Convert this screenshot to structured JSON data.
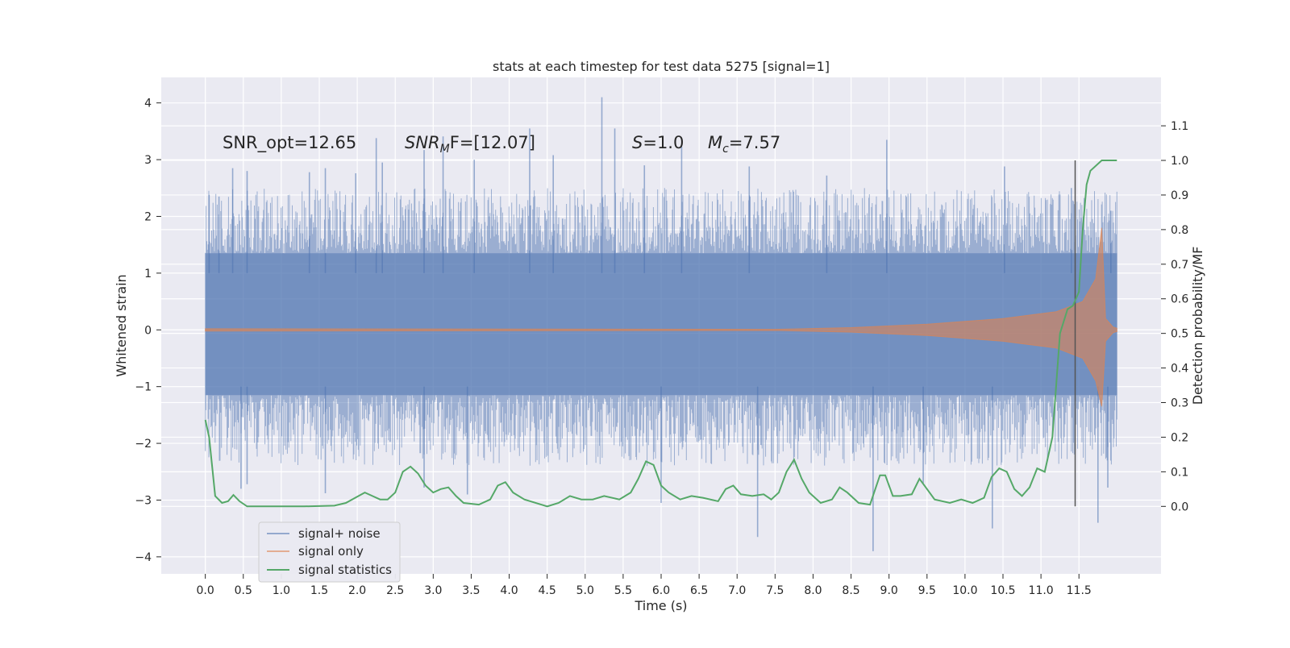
{
  "chart_data": {
    "type": "line",
    "title": "stats at each timestep for test data 5275 [signal=1]",
    "xlabel": "Time (s)",
    "ylabel_left": "Whitened strain",
    "ylabel_right": "Detection probability/MF",
    "xlim": [
      -0.58,
      12.58
    ],
    "ylim_left": [
      -4.3,
      4.45
    ],
    "ylim_right": [
      -0.195,
      1.24
    ],
    "x_ticks": [
      "0.0",
      "0.5",
      "1.0",
      "1.5",
      "2.0",
      "2.5",
      "3.0",
      "3.5",
      "4.0",
      "4.5",
      "5.0",
      "5.5",
      "6.0",
      "6.5",
      "7.0",
      "7.5",
      "8.0",
      "8.5",
      "9.0",
      "9.5",
      "10.0",
      "10.5",
      "11.0",
      "11.5"
    ],
    "y_ticks_left": [
      "4",
      "3",
      "2",
      "1",
      "0",
      "−1",
      "−2",
      "−3",
      "−4"
    ],
    "y_ticks_right": [
      "1.1",
      "1.0",
      "0.9",
      "0.8",
      "0.7",
      "0.6",
      "0.5",
      "0.4",
      "0.3",
      "0.2",
      "0.1",
      "0.0"
    ],
    "grid": true,
    "legend_position": "lower-left",
    "annotations": {
      "snr_opt": "SNR_opt=12.65",
      "snr_mf_main": "SNR",
      "snr_mf_sub": "M",
      "snr_mf_tail": "F=[12.07]",
      "s_main": "S",
      "s_tail": "=1.0",
      "mc_main": "M",
      "mc_sub": "c",
      "mc_tail": "=7.57"
    },
    "vertical_line": {
      "x": 11.45,
      "y_range_right": [
        0.0,
        1.0
      ],
      "color": "#555555"
    },
    "series": [
      {
        "name": "signal+ noise",
        "axis": "left",
        "color": "#4c72b0",
        "x_range": [
          0.0,
          12.0
        ],
        "dense_band": [
          -1.15,
          1.35
        ],
        "spikes": [
          {
            "x": 0.05,
            "y": 2.38
          },
          {
            "x": 0.18,
            "y": 2.35
          },
          {
            "x": 0.36,
            "y": 2.85
          },
          {
            "x": 0.55,
            "y": 2.8
          },
          {
            "x": 1.37,
            "y": 2.78
          },
          {
            "x": 1.58,
            "y": 2.85
          },
          {
            "x": 1.98,
            "y": 2.76
          },
          {
            "x": 2.25,
            "y": 3.38
          },
          {
            "x": 2.33,
            "y": 2.95
          },
          {
            "x": 2.88,
            "y": 3.17
          },
          {
            "x": 3.13,
            "y": 3.41
          },
          {
            "x": 3.54,
            "y": 3.0
          },
          {
            "x": 4.27,
            "y": 3.55
          },
          {
            "x": 4.58,
            "y": 3.08
          },
          {
            "x": 5.22,
            "y": 4.1
          },
          {
            "x": 5.39,
            "y": 3.55
          },
          {
            "x": 5.78,
            "y": 2.9
          },
          {
            "x": 6.27,
            "y": 3.23
          },
          {
            "x": 7.16,
            "y": 2.88
          },
          {
            "x": 8.18,
            "y": 2.72
          },
          {
            "x": 8.97,
            "y": 3.35
          },
          {
            "x": 10.52,
            "y": 2.88
          },
          {
            "x": 11.4,
            "y": 2.5
          },
          {
            "x": 11.92,
            "y": 2.1
          },
          {
            "x": 0.47,
            "y": -2.8
          },
          {
            "x": 0.55,
            "y": -2.72
          },
          {
            "x": 1.58,
            "y": -2.88
          },
          {
            "x": 2.88,
            "y": -2.78
          },
          {
            "x": 3.45,
            "y": -2.9
          },
          {
            "x": 6.0,
            "y": -3.05
          },
          {
            "x": 7.27,
            "y": -3.65
          },
          {
            "x": 8.79,
            "y": -3.9
          },
          {
            "x": 10.36,
            "y": -3.5
          },
          {
            "x": 11.75,
            "y": -3.4
          },
          {
            "x": 11.88,
            "y": -2.78
          },
          {
            "x": 9.45,
            "y": -2.7
          }
        ]
      },
      {
        "name": "signal only",
        "axis": "left",
        "color": "#dd8452",
        "x_range": [
          0.0,
          12.0
        ],
        "envelope": [
          {
            "x": 0.0,
            "y": 0.02
          },
          {
            "x": 7.5,
            "y": 0.01
          },
          {
            "x": 8.5,
            "y": 0.04
          },
          {
            "x": 9.5,
            "y": 0.1
          },
          {
            "x": 10.5,
            "y": 0.2
          },
          {
            "x": 11.2,
            "y": 0.32
          },
          {
            "x": 11.55,
            "y": 0.5
          },
          {
            "x": 11.72,
            "y": 0.9
          },
          {
            "x": 11.8,
            "y": 1.8
          },
          {
            "x": 11.85,
            "y": 0.2
          },
          {
            "x": 11.95,
            "y": 0.05
          },
          {
            "x": 12.0,
            "y": 0.03
          }
        ],
        "envelope_lower": [
          {
            "x": 11.8,
            "y": -1.35
          }
        ]
      },
      {
        "name": "signal statistics",
        "axis": "right",
        "color": "#55a868",
        "points": [
          [
            0.0,
            0.25
          ],
          [
            0.05,
            0.2
          ],
          [
            0.13,
            0.03
          ],
          [
            0.22,
            0.01
          ],
          [
            0.3,
            0.015
          ],
          [
            0.37,
            0.033
          ],
          [
            0.45,
            0.015
          ],
          [
            0.55,
            0.0
          ],
          [
            0.7,
            0.0
          ],
          [
            0.9,
            0.0
          ],
          [
            1.3,
            0.0
          ],
          [
            1.7,
            0.002
          ],
          [
            1.85,
            0.01
          ],
          [
            2.0,
            0.028
          ],
          [
            2.1,
            0.04
          ],
          [
            2.2,
            0.03
          ],
          [
            2.3,
            0.02
          ],
          [
            2.4,
            0.02
          ],
          [
            2.5,
            0.04
          ],
          [
            2.6,
            0.1
          ],
          [
            2.7,
            0.115
          ],
          [
            2.8,
            0.095
          ],
          [
            2.9,
            0.06
          ],
          [
            3.0,
            0.04
          ],
          [
            3.1,
            0.05
          ],
          [
            3.2,
            0.055
          ],
          [
            3.3,
            0.03
          ],
          [
            3.4,
            0.01
          ],
          [
            3.6,
            0.005
          ],
          [
            3.75,
            0.02
          ],
          [
            3.85,
            0.06
          ],
          [
            3.95,
            0.07
          ],
          [
            4.05,
            0.04
          ],
          [
            4.2,
            0.02
          ],
          [
            4.5,
            0.0
          ],
          [
            4.65,
            0.01
          ],
          [
            4.8,
            0.03
          ],
          [
            4.95,
            0.02
          ],
          [
            5.1,
            0.02
          ],
          [
            5.25,
            0.03
          ],
          [
            5.45,
            0.02
          ],
          [
            5.6,
            0.04
          ],
          [
            5.7,
            0.08
          ],
          [
            5.8,
            0.13
          ],
          [
            5.9,
            0.12
          ],
          [
            6.0,
            0.06
          ],
          [
            6.1,
            0.04
          ],
          [
            6.25,
            0.02
          ],
          [
            6.4,
            0.03
          ],
          [
            6.55,
            0.025
          ],
          [
            6.75,
            0.015
          ],
          [
            6.85,
            0.05
          ],
          [
            6.95,
            0.06
          ],
          [
            7.05,
            0.035
          ],
          [
            7.2,
            0.03
          ],
          [
            7.35,
            0.035
          ],
          [
            7.45,
            0.02
          ],
          [
            7.55,
            0.04
          ],
          [
            7.65,
            0.1
          ],
          [
            7.75,
            0.135
          ],
          [
            7.85,
            0.08
          ],
          [
            7.95,
            0.04
          ],
          [
            8.1,
            0.01
          ],
          [
            8.25,
            0.02
          ],
          [
            8.35,
            0.055
          ],
          [
            8.45,
            0.04
          ],
          [
            8.6,
            0.01
          ],
          [
            8.75,
            0.005
          ],
          [
            8.88,
            0.09
          ],
          [
            8.95,
            0.09
          ],
          [
            9.05,
            0.03
          ],
          [
            9.15,
            0.03
          ],
          [
            9.3,
            0.035
          ],
          [
            9.4,
            0.08
          ],
          [
            9.5,
            0.05
          ],
          [
            9.6,
            0.02
          ],
          [
            9.8,
            0.01
          ],
          [
            9.95,
            0.02
          ],
          [
            10.1,
            0.01
          ],
          [
            10.25,
            0.025
          ],
          [
            10.35,
            0.085
          ],
          [
            10.45,
            0.11
          ],
          [
            10.55,
            0.1
          ],
          [
            10.65,
            0.05
          ],
          [
            10.75,
            0.03
          ],
          [
            10.85,
            0.055
          ],
          [
            10.95,
            0.11
          ],
          [
            11.05,
            0.1
          ],
          [
            11.15,
            0.2
          ],
          [
            11.25,
            0.5
          ],
          [
            11.35,
            0.57
          ],
          [
            11.42,
            0.58
          ],
          [
            11.5,
            0.62
          ],
          [
            11.55,
            0.8
          ],
          [
            11.6,
            0.93
          ],
          [
            11.65,
            0.97
          ],
          [
            11.8,
            1.0
          ],
          [
            12.0,
            1.0
          ]
        ]
      }
    ]
  }
}
